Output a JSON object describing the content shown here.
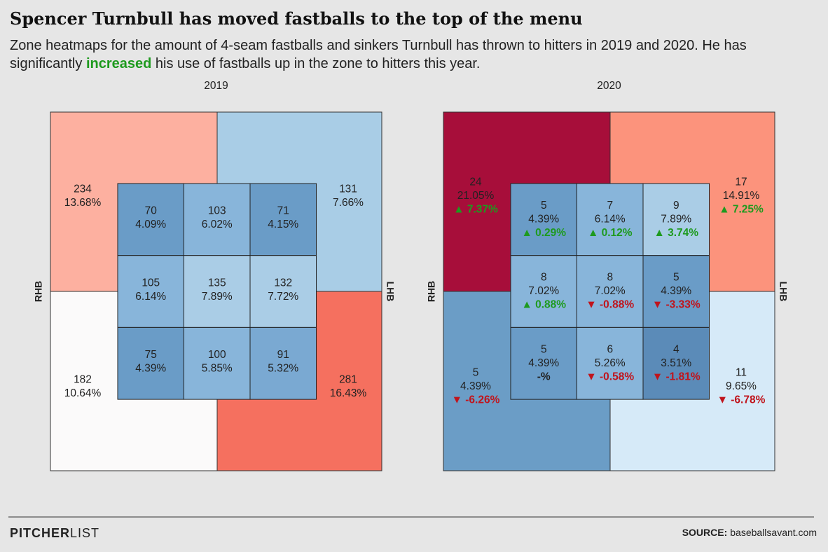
{
  "header": {
    "title": "Spencer Turnbull has moved fastballs to the top of the menu",
    "subtitle": {
      "before": "Zone heatmaps for the amount of 4-seam fastballs and sinkers Turnbull has thrown to hitters in 2019 and 2020. He has significantly ",
      "highlight": "increased",
      "highlight_color": "#1e9a1e",
      "after": " his use of fastballs up in the zone to hitters this year."
    }
  },
  "panels": [
    {
      "year": "2019",
      "left_label": "RHB",
      "right_label": "LHB",
      "outer": [
        {
          "count": 234,
          "pct": "13.68%",
          "color": "#fdb0a0"
        },
        {
          "count": 131,
          "pct": "7.66%",
          "color": "#a9cde6"
        },
        {
          "count": 182,
          "pct": "10.64%",
          "color": "#fbfafa"
        },
        {
          "count": 281,
          "pct": "16.43%",
          "color": "#f5705f"
        }
      ],
      "inner": [
        {
          "count": 70,
          "pct": "4.09%",
          "color": "#6a9cc7"
        },
        {
          "count": 103,
          "pct": "6.02%",
          "color": "#88b5da"
        },
        {
          "count": 71,
          "pct": "4.15%",
          "color": "#6a9cc7"
        },
        {
          "count": 105,
          "pct": "6.14%",
          "color": "#88b5da"
        },
        {
          "count": 135,
          "pct": "7.89%",
          "color": "#aacde6"
        },
        {
          "count": 132,
          "pct": "7.72%",
          "color": "#aacde6"
        },
        {
          "count": 75,
          "pct": "4.39%",
          "color": "#6a9cc7"
        },
        {
          "count": 100,
          "pct": "5.85%",
          "color": "#88b5da"
        },
        {
          "count": 91,
          "pct": "5.32%",
          "color": "#7aa9d2"
        }
      ]
    },
    {
      "year": "2020",
      "left_label": "RHB",
      "right_label": "LHB",
      "outer": [
        {
          "count": 24,
          "pct": "21.05%",
          "change": "▲ 7.37%",
          "change_color": "#1e9a1e",
          "color": "#a70e3a"
        },
        {
          "count": 17,
          "pct": "14.91%",
          "change": "▲ 7.25%",
          "change_color": "#1e9a1e",
          "color": "#fc937c"
        },
        {
          "count": 5,
          "pct": "4.39%",
          "change": "▼ -6.26%",
          "change_color": "#c0141c",
          "color": "#6b9dc6"
        },
        {
          "count": 11,
          "pct": "9.65%",
          "change": "▼ -6.78%",
          "change_color": "#c0141c",
          "color": "#d6eaf8"
        }
      ],
      "inner": [
        {
          "count": 5,
          "pct": "4.39%",
          "change": "▲ 0.29%",
          "change_color": "#1e9a1e",
          "color": "#6a9cc7"
        },
        {
          "count": 7,
          "pct": "6.14%",
          "change": "▲ 0.12%",
          "change_color": "#1e9a1e",
          "color": "#88b5da"
        },
        {
          "count": 9,
          "pct": "7.89%",
          "change": "▲ 3.74%",
          "change_color": "#1e9a1e",
          "color": "#aacde6"
        },
        {
          "count": 8,
          "pct": "7.02%",
          "change": "▲ 0.88%",
          "change_color": "#1e9a1e",
          "color": "#88b5da"
        },
        {
          "count": 8,
          "pct": "7.02%",
          "change": "▼ -0.88%",
          "change_color": "#c0141c",
          "color": "#88b5da"
        },
        {
          "count": 5,
          "pct": "4.39%",
          "change": "▼ -3.33%",
          "change_color": "#c0141c",
          "color": "#6a9cc7"
        },
        {
          "count": 5,
          "pct": "4.39%",
          "change": "-%",
          "change_color": "#222222",
          "color": "#6a9cc7"
        },
        {
          "count": 6,
          "pct": "5.26%",
          "change": "▼ -0.58%",
          "change_color": "#c0141c",
          "color": "#88b5da"
        },
        {
          "count": 4,
          "pct": "3.51%",
          "change": "▼ -1.81%",
          "change_color": "#c0141c",
          "color": "#5b8bb8"
        }
      ]
    }
  ],
  "footer": {
    "brand_bold": "PITCHER",
    "brand_light": "LIST",
    "source_label": "SOURCE:",
    "source": "baseballsavant.com"
  }
}
